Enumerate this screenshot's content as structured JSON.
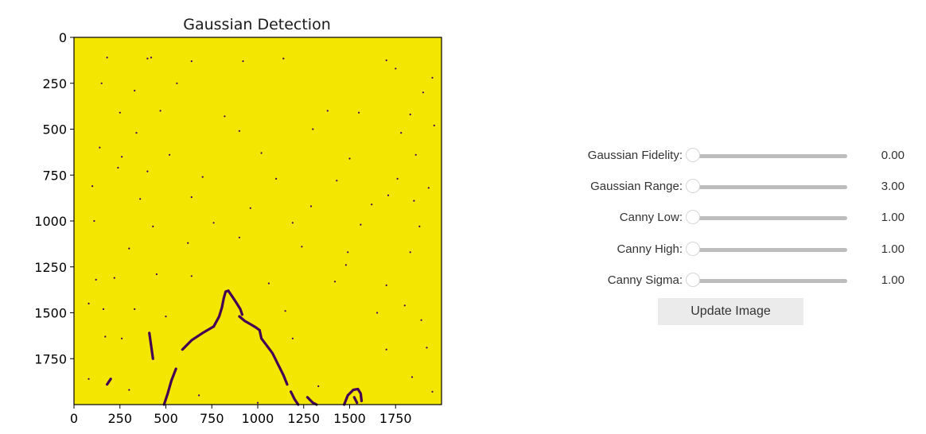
{
  "chart_data": {
    "type": "heatmap",
    "title": "Gaussian Detection",
    "xlabel": "",
    "ylabel": "",
    "xlim": [
      0,
      2000
    ],
    "ylim": [
      2000,
      0
    ],
    "x_ticks": [
      0,
      250,
      500,
      750,
      1000,
      1250,
      1500,
      1750
    ],
    "y_ticks": [
      0,
      250,
      500,
      750,
      1000,
      1250,
      1500,
      1750
    ],
    "colors": {
      "background": "#f3e600",
      "edges": "#440154"
    },
    "edge_paths": [
      [
        [
          490,
          2000
        ],
        [
          510,
          1940
        ],
        [
          530,
          1870
        ],
        [
          555,
          1805
        ]
      ],
      [
        [
          590,
          1700
        ],
        [
          640,
          1650
        ],
        [
          700,
          1610
        ],
        [
          760,
          1575
        ]
      ],
      [
        [
          760,
          1575
        ],
        [
          790,
          1520
        ],
        [
          805,
          1470
        ],
        [
          815,
          1420
        ],
        [
          825,
          1385
        ],
        [
          840,
          1380
        ]
      ],
      [
        [
          840,
          1380
        ],
        [
          860,
          1410
        ],
        [
          880,
          1440
        ],
        [
          905,
          1480
        ],
        [
          915,
          1510
        ]
      ],
      [
        [
          900,
          1520
        ],
        [
          930,
          1545
        ],
        [
          965,
          1565
        ],
        [
          990,
          1580
        ],
        [
          1010,
          1595
        ]
      ],
      [
        [
          1010,
          1595
        ],
        [
          1020,
          1640
        ],
        [
          1050,
          1680
        ],
        [
          1080,
          1720
        ],
        [
          1110,
          1780
        ],
        [
          1140,
          1840
        ],
        [
          1160,
          1890
        ]
      ],
      [
        [
          1180,
          1930
        ],
        [
          1200,
          1970
        ],
        [
          1220,
          2000
        ]
      ],
      [
        [
          1270,
          1960
        ],
        [
          1300,
          1990
        ],
        [
          1320,
          2000
        ]
      ],
      [
        [
          1470,
          2000
        ],
        [
          1490,
          1950
        ],
        [
          1520,
          1920
        ],
        [
          1545,
          1915
        ],
        [
          1560,
          1940
        ],
        [
          1565,
          1980
        ]
      ],
      [
        [
          1525,
          1960
        ],
        [
          1540,
          1990
        ]
      ],
      [
        [
          410,
          1610
        ],
        [
          420,
          1680
        ],
        [
          430,
          1750
        ]
      ],
      [
        [
          200,
          1860
        ],
        [
          180,
          1890
        ]
      ]
    ],
    "specks": [
      [
        400,
        115
      ],
      [
        420,
        110
      ],
      [
        180,
        110
      ],
      [
        150,
        250
      ],
      [
        330,
        290
      ],
      [
        560,
        250
      ],
      [
        640,
        130
      ],
      [
        920,
        130
      ],
      [
        1140,
        115
      ],
      [
        1700,
        125
      ],
      [
        1750,
        170
      ],
      [
        1950,
        220
      ],
      [
        1900,
        300
      ],
      [
        250,
        410
      ],
      [
        470,
        400
      ],
      [
        820,
        430
      ],
      [
        1380,
        400
      ],
      [
        1550,
        410
      ],
      [
        1830,
        420
      ],
      [
        340,
        520
      ],
      [
        900,
        510
      ],
      [
        1300,
        500
      ],
      [
        1780,
        520
      ],
      [
        1960,
        480
      ],
      [
        140,
        600
      ],
      [
        260,
        650
      ],
      [
        520,
        640
      ],
      [
        1020,
        630
      ],
      [
        1500,
        660
      ],
      [
        1860,
        640
      ],
      [
        240,
        710
      ],
      [
        400,
        730
      ],
      [
        700,
        760
      ],
      [
        1100,
        770
      ],
      [
        1430,
        780
      ],
      [
        1760,
        770
      ],
      [
        1930,
        820
      ],
      [
        100,
        810
      ],
      [
        360,
        880
      ],
      [
        640,
        870
      ],
      [
        960,
        930
      ],
      [
        1290,
        920
      ],
      [
        1620,
        910
      ],
      [
        1710,
        860
      ],
      [
        1850,
        890
      ],
      [
        110,
        1000
      ],
      [
        430,
        1030
      ],
      [
        760,
        1010
      ],
      [
        1190,
        1010
      ],
      [
        1560,
        1020
      ],
      [
        1880,
        1030
      ],
      [
        300,
        1150
      ],
      [
        620,
        1120
      ],
      [
        900,
        1090
      ],
      [
        1240,
        1140
      ],
      [
        1490,
        1170
      ],
      [
        1830,
        1170
      ],
      [
        1480,
        1240
      ],
      [
        120,
        1320
      ],
      [
        220,
        1310
      ],
      [
        450,
        1290
      ],
      [
        640,
        1300
      ],
      [
        1060,
        1340
      ],
      [
        1420,
        1330
      ],
      [
        1700,
        1350
      ],
      [
        1800,
        1460
      ],
      [
        80,
        1450
      ],
      [
        160,
        1480
      ],
      [
        330,
        1480
      ],
      [
        500,
        1520
      ],
      [
        1150,
        1490
      ],
      [
        1650,
        1500
      ],
      [
        1890,
        1540
      ],
      [
        170,
        1630
      ],
      [
        260,
        1640
      ],
      [
        1190,
        1640
      ],
      [
        1700,
        1700
      ],
      [
        1920,
        1690
      ],
      [
        80,
        1860
      ],
      [
        300,
        1920
      ],
      [
        680,
        1950
      ],
      [
        1000,
        1990
      ],
      [
        1330,
        1900
      ],
      [
        1840,
        1850
      ],
      [
        1950,
        1930
      ]
    ]
  },
  "controls": {
    "sliders": [
      {
        "label": "Gaussian Fidelity:",
        "value": "0.00",
        "fraction": 0
      },
      {
        "label": "Gaussian Range:",
        "value": "3.00",
        "fraction": 0
      },
      {
        "label": "Canny Low:",
        "value": "1.00",
        "fraction": 0
      },
      {
        "label": "Canny High:",
        "value": "1.00",
        "fraction": 0
      },
      {
        "label": "Canny Sigma:",
        "value": "1.00",
        "fraction": 0
      }
    ],
    "update_button_label": "Update Image"
  }
}
